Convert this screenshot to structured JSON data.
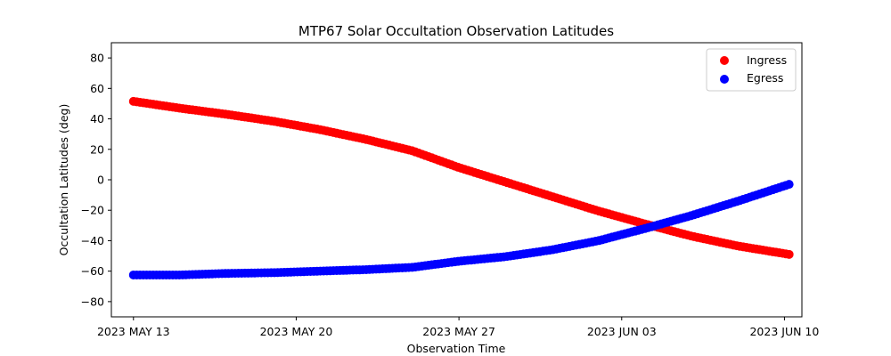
{
  "chart_data": {
    "type": "scatter",
    "title": "MTP67 Solar Occultation Observation Latitudes",
    "xlabel": "Observation Time",
    "ylabel": "Occultation Latitudes (deg)",
    "xlim_days": [
      -0.95,
      28.75
    ],
    "ylim": [
      -90,
      90
    ],
    "x_ticks": [
      {
        "day": 0,
        "label": "2023 MAY 13"
      },
      {
        "day": 7,
        "label": "2023 MAY 20"
      },
      {
        "day": 14,
        "label": "2023 MAY 27"
      },
      {
        "day": 21,
        "label": "2023 JUN 03"
      },
      {
        "day": 28,
        "label": "2023 JUN 10"
      }
    ],
    "y_ticks": [
      -80,
      -60,
      -40,
      -20,
      0,
      20,
      40,
      60,
      80
    ],
    "x_unit": "days since 2023 MAY 13",
    "grid": false,
    "legend_position": "top-right",
    "series": [
      {
        "name": "Ingress",
        "color": "#ff0000",
        "x": [
          0,
          2,
          4,
          6,
          8,
          10,
          12,
          14,
          16,
          18,
          20,
          22,
          24,
          26,
          28.2
        ],
        "y": [
          51.5,
          47,
          43,
          38.5,
          33,
          26.5,
          19,
          8,
          -1.5,
          -11,
          -20.5,
          -29,
          -37,
          -43.5,
          -49
        ]
      },
      {
        "name": "Egress",
        "color": "#0000ff",
        "x": [
          0,
          2,
          4,
          6,
          8,
          10,
          12,
          14,
          16,
          18,
          20,
          22,
          24,
          26,
          28.2
        ],
        "y": [
          -62.5,
          -62.5,
          -61.5,
          -61,
          -60,
          -59,
          -57.5,
          -53.5,
          -50.5,
          -46,
          -40,
          -32,
          -23.5,
          -14,
          -3
        ]
      }
    ]
  }
}
